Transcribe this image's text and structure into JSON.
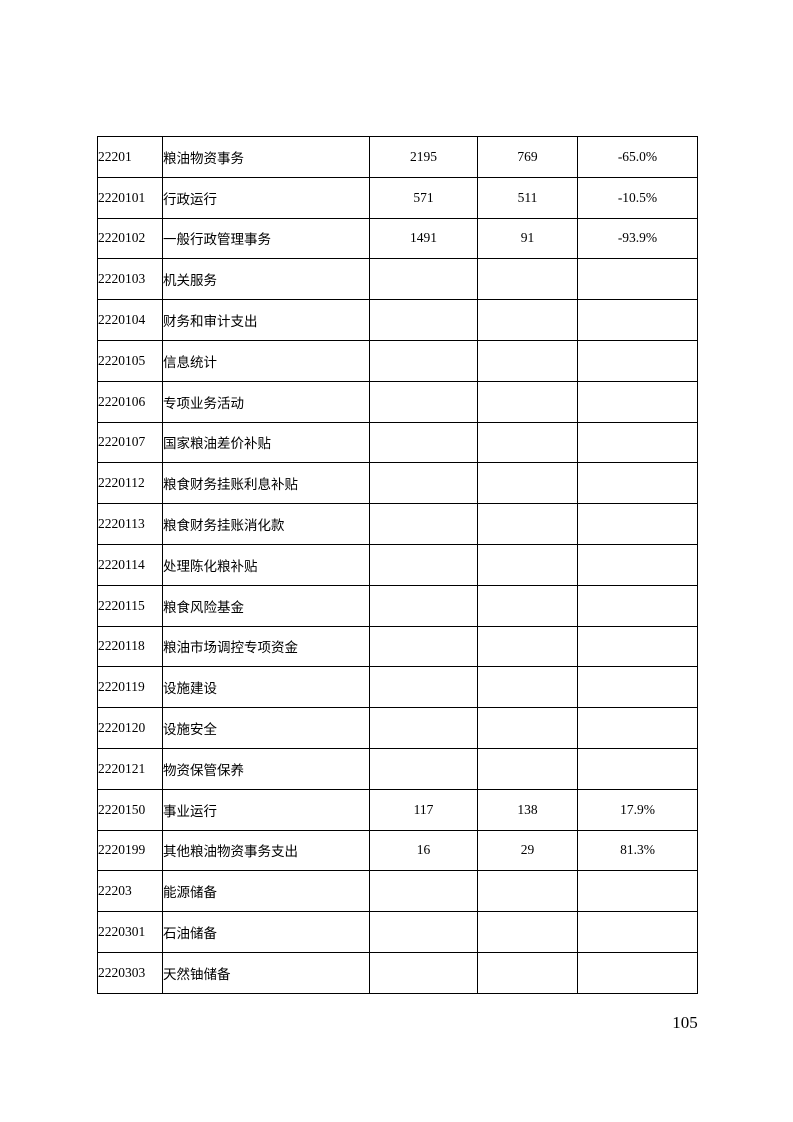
{
  "page": {
    "number": "105",
    "background_color": "#ffffff",
    "text_color": "#000000",
    "border_color": "#000000"
  },
  "table": {
    "columns": [
      "code",
      "name",
      "value_prev",
      "value_curr",
      "change_pct"
    ],
    "rows": [
      {
        "code": "22201",
        "name": "粮油物资事务",
        "v1": "2195",
        "v2": "769",
        "pct": "-65.0%"
      },
      {
        "code": "2220101",
        "name": "行政运行",
        "v1": "571",
        "v2": "511",
        "pct": "-10.5%"
      },
      {
        "code": "2220102",
        "name": "一般行政管理事务",
        "v1": "1491",
        "v2": "91",
        "pct": "-93.9%"
      },
      {
        "code": "2220103",
        "name": "机关服务",
        "v1": "",
        "v2": "",
        "pct": ""
      },
      {
        "code": "2220104",
        "name": "财务和审计支出",
        "v1": "",
        "v2": "",
        "pct": ""
      },
      {
        "code": "2220105",
        "name": "信息统计",
        "v1": "",
        "v2": "",
        "pct": ""
      },
      {
        "code": "2220106",
        "name": "专项业务活动",
        "v1": "",
        "v2": "",
        "pct": ""
      },
      {
        "code": "2220107",
        "name": "国家粮油差价补贴",
        "v1": "",
        "v2": "",
        "pct": ""
      },
      {
        "code": "2220112",
        "name": "粮食财务挂账利息补贴",
        "v1": "",
        "v2": "",
        "pct": ""
      },
      {
        "code": "2220113",
        "name": "粮食财务挂账消化款",
        "v1": "",
        "v2": "",
        "pct": ""
      },
      {
        "code": "2220114",
        "name": "处理陈化粮补贴",
        "v1": "",
        "v2": "",
        "pct": ""
      },
      {
        "code": "2220115",
        "name": "粮食风险基金",
        "v1": "",
        "v2": "",
        "pct": ""
      },
      {
        "code": "2220118",
        "name": "粮油市场调控专项资金",
        "v1": "",
        "v2": "",
        "pct": ""
      },
      {
        "code": "2220119",
        "name": "设施建设",
        "v1": "",
        "v2": "",
        "pct": ""
      },
      {
        "code": "2220120",
        "name": "设施安全",
        "v1": "",
        "v2": "",
        "pct": ""
      },
      {
        "code": "2220121",
        "name": "物资保管保养",
        "v1": "",
        "v2": "",
        "pct": ""
      },
      {
        "code": "2220150",
        "name": "事业运行",
        "v1": "117",
        "v2": "138",
        "pct": "17.9%"
      },
      {
        "code": "2220199",
        "name": "其他粮油物资事务支出",
        "v1": "16",
        "v2": "29",
        "pct": "81.3%"
      },
      {
        "code": "22203",
        "name": "能源储备",
        "v1": "",
        "v2": "",
        "pct": ""
      },
      {
        "code": "2220301",
        "name": "石油储备",
        "v1": "",
        "v2": "",
        "pct": ""
      },
      {
        "code": "2220303",
        "name": "天然铀储备",
        "v1": "",
        "v2": "",
        "pct": ""
      }
    ]
  }
}
